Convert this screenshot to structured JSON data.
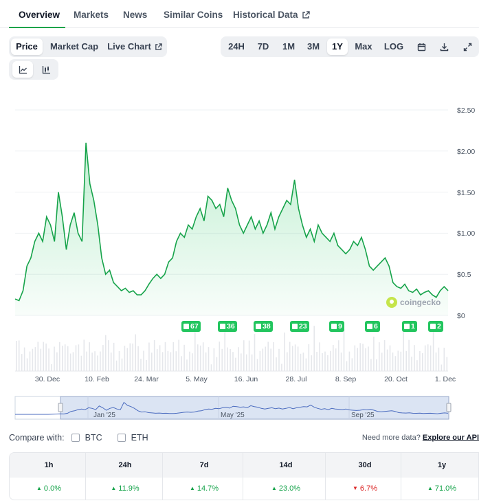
{
  "tabs": [
    {
      "label": "Overview"
    },
    {
      "label": "Markets"
    },
    {
      "label": "News"
    },
    {
      "label": "Similar Coins"
    },
    {
      "label": "Historical Data"
    }
  ],
  "view_toggle": {
    "price": "Price",
    "market_cap": "Market Cap",
    "live_chart": "Live Chart"
  },
  "ranges": [
    "24H",
    "7D",
    "1M",
    "3M",
    "1Y",
    "Max",
    "LOG"
  ],
  "selected_range": "1Y",
  "chart_types": [
    "line-chart-icon",
    "candlestick-chart-icon"
  ],
  "colors": {
    "accent": "#16a34a",
    "up": "#16a34a",
    "down": "#dc2626",
    "line": "#16a34a"
  },
  "watermark": "coingecko",
  "chart_data": {
    "type": "line",
    "y_ticks": [
      "$2.50",
      "$2.00",
      "$1.50",
      "$1.00",
      "$0.5",
      "$0"
    ],
    "ylim": [
      0,
      2.5
    ],
    "x_ticks": [
      "30. Dec",
      "10. Feb",
      "24. Mar",
      "5. May",
      "16. Jun",
      "28. Jul",
      "8. Sep",
      "20. Oct",
      "1. Dec"
    ],
    "grid": true,
    "series": [
      {
        "values": [
          0.2,
          0.18,
          0.3,
          0.6,
          0.7,
          0.9,
          1.0,
          0.9,
          1.2,
          1.1,
          0.9,
          1.5,
          1.2,
          0.8,
          1.1,
          1.25,
          1.0,
          0.9,
          2.1,
          1.6,
          1.4,
          1.1,
          0.7,
          0.5,
          0.55,
          0.4,
          0.35,
          0.3,
          0.33,
          0.28,
          0.3,
          0.25,
          0.25,
          0.3,
          0.38,
          0.45,
          0.5,
          0.45,
          0.5,
          0.65,
          0.7,
          0.9,
          1.0,
          0.95,
          1.1,
          1.05,
          1.2,
          1.3,
          1.15,
          1.45,
          1.4,
          1.3,
          1.35,
          1.2,
          1.55,
          1.4,
          1.3,
          1.1,
          1.0,
          1.1,
          1.2,
          1.05,
          1.15,
          1.0,
          1.1,
          1.25,
          1.05,
          1.2,
          1.3,
          1.4,
          1.35,
          1.65,
          1.3,
          1.1,
          0.95,
          1.05,
          0.9,
          1.1,
          1.0,
          0.95,
          0.9,
          1.0,
          0.85,
          0.8,
          0.75,
          0.8,
          0.9,
          0.85,
          0.95,
          0.8,
          0.6,
          0.55,
          0.6,
          0.65,
          0.7,
          0.6,
          0.4,
          0.35,
          0.33,
          0.38,
          0.3,
          0.28,
          0.32,
          0.25,
          0.28,
          0.3,
          0.25,
          0.22,
          0.3,
          0.35,
          0.3
        ]
      }
    ],
    "event_badges": [
      "67",
      "36",
      "38",
      "23",
      "9",
      "6",
      "1",
      "2"
    ],
    "navigator_labels": [
      "Jan '25",
      "May '25",
      "Sep '25"
    ]
  },
  "compare": {
    "label": "Compare with:",
    "options": [
      "BTC",
      "ETH"
    ]
  },
  "need_more": {
    "text": "Need more data?",
    "link": "Explore our API"
  },
  "performance": {
    "periods": [
      "1h",
      "24h",
      "7d",
      "14d",
      "30d",
      "1y"
    ],
    "values": [
      {
        "value": "0.0%",
        "dir": "up"
      },
      {
        "value": "11.9%",
        "dir": "up"
      },
      {
        "value": "14.7%",
        "dir": "up"
      },
      {
        "value": "23.0%",
        "dir": "up"
      },
      {
        "value": "6.7%",
        "dir": "down"
      },
      {
        "value": "71.0%",
        "dir": "up"
      }
    ]
  }
}
